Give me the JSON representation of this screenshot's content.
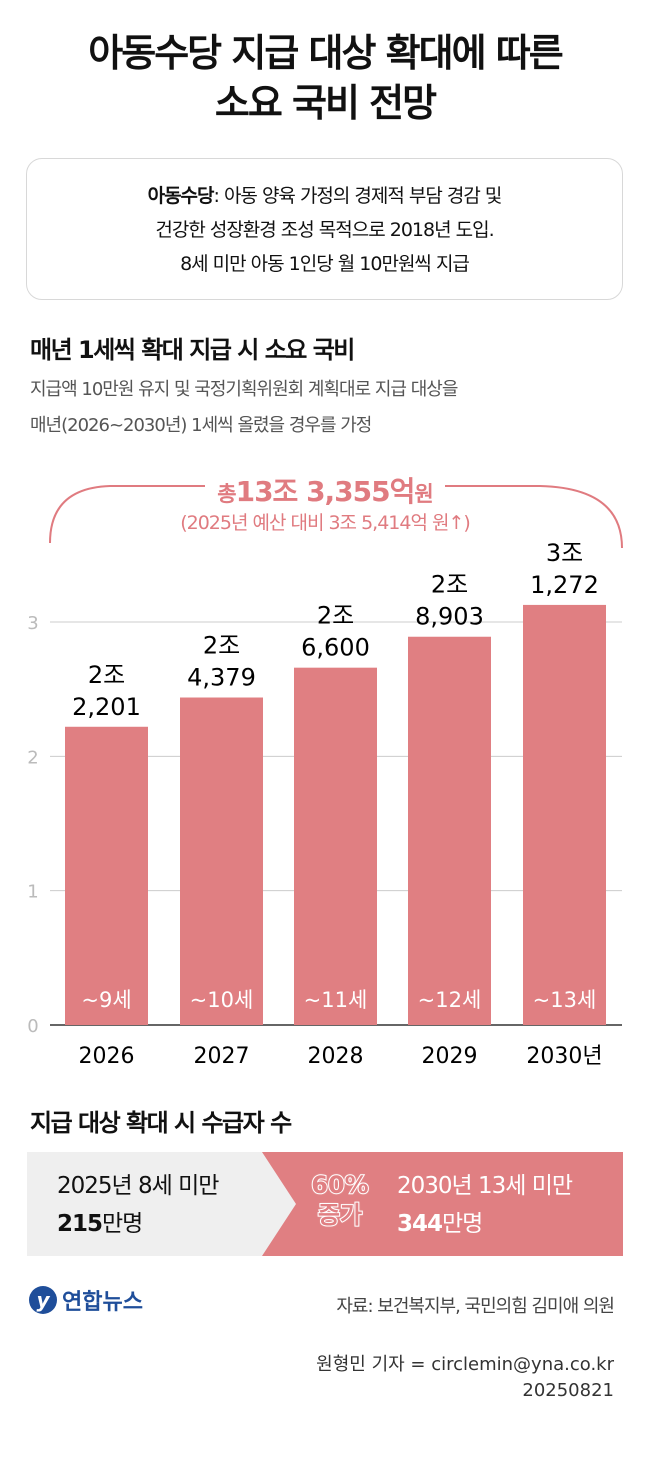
{
  "title": {
    "line1": "아동수당 지급 대상 확대에 따른",
    "line2": "소요 국비 전망"
  },
  "note": {
    "term": "아동수당",
    "line1": ": 아동 양육 가정의 경제적 부담 경감 및",
    "line2": "건강한 성장환경 조성 목적으로 2018년 도입.",
    "line3": "8세 미만 아동 1인당 월 10만원씩 지급"
  },
  "section1": {
    "heading": "매년 1세씩 확대 지급 시 소요 국비",
    "sub1": "지급액 10만원 유지 및 국정기획위원회 계획대로 지급 대상을",
    "sub2": "매년(2026~2030년) 1세씩 올렸을 경우를 가정",
    "total_prefix": "총",
    "total_value": "13조 3,355억",
    "total_unit": "원",
    "total_note": "(2025년 예산 대비 3조 5,414억 원↑)"
  },
  "chart_data": {
    "type": "bar",
    "categories": [
      "2026",
      "2027",
      "2028",
      "2029",
      "2030년"
    ],
    "values": [
      2.2201,
      2.4379,
      2.66,
      2.8903,
      3.1272
    ],
    "value_labels": [
      [
        "2조",
        "2,201"
      ],
      [
        "2조",
        "4,379"
      ],
      [
        "2조",
        "6,600"
      ],
      [
        "2조",
        "8,903"
      ],
      [
        "3조",
        "1,272"
      ]
    ],
    "bar_labels": [
      "~9세",
      "~10세",
      "~11세",
      "~12세",
      "~13세"
    ],
    "yticks": [
      "0",
      "1",
      "2",
      "3"
    ],
    "ylim": [
      0,
      3
    ],
    "grid": true,
    "bar_color": "#e07f82"
  },
  "section2": {
    "heading": "지급 대상 확대 시 수급자 수",
    "left_line1": "2025년 8세 미만",
    "left_num": "215",
    "left_unit": "만명",
    "mid_line1": "60%",
    "mid_line2": "증가",
    "right_line1": "2030년 13세 미만",
    "right_num": "344",
    "right_unit": "만명"
  },
  "footer": {
    "logo": "연합뉴스",
    "source": "자료: 보건복지부, 국민의힘 김미애 의원",
    "credit": "원형민 기자 = circlemin@yna.co.kr",
    "date": "20250821"
  }
}
